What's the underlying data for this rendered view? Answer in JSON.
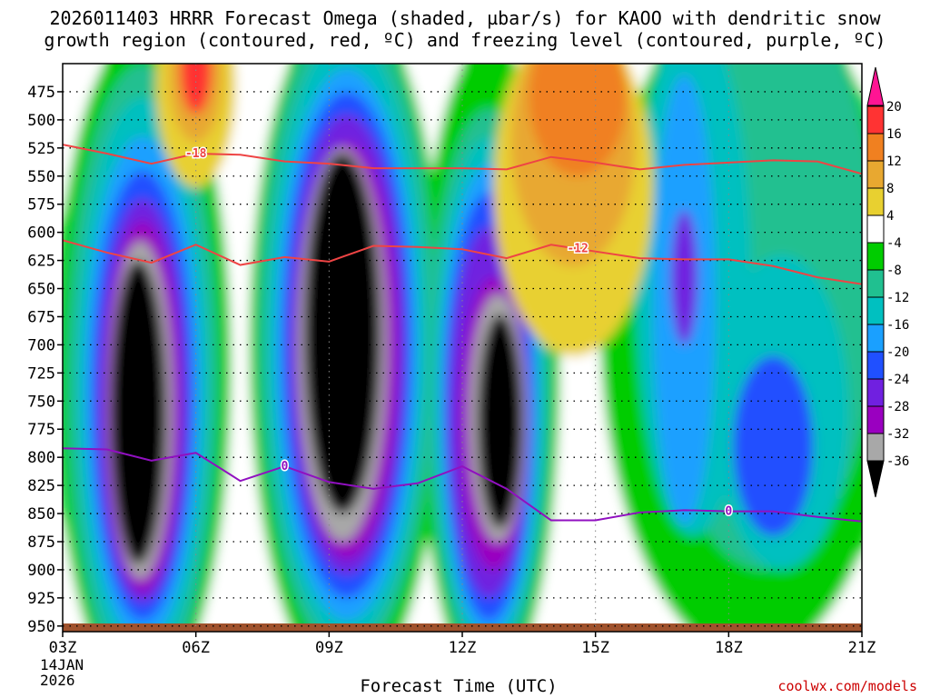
{
  "title": {
    "line1": "2026011403 HRRR Forecast Omega (shaded, µbar/s) for KAOO with dendritic snow",
    "line2": "growth region (contoured, red, ºC) and freezing level (contoured, purple, ºC)"
  },
  "credit": "coolwx.com/models",
  "chart_data": {
    "type": "heatmap",
    "xlabel": "Forecast Time (UTC)",
    "x_ticks": [
      "03Z",
      "06Z",
      "09Z",
      "12Z",
      "15Z",
      "18Z",
      "21Z"
    ],
    "x_tick_hours": [
      3,
      6,
      9,
      12,
      15,
      18,
      21
    ],
    "x_date_label": [
      "14JAN",
      "2026"
    ],
    "xlim": [
      3,
      21
    ],
    "ylabel": "",
    "y_ticks": [
      475,
      500,
      525,
      550,
      575,
      600,
      625,
      650,
      675,
      700,
      725,
      750,
      775,
      800,
      825,
      850,
      875,
      900,
      925,
      950
    ],
    "ylim": [
      450,
      955
    ],
    "y_inverted": true,
    "grid": true,
    "colorbar": {
      "labels": [
        "20",
        "16",
        "12",
        "8",
        "4",
        "-4",
        "-8",
        "-12",
        "-16",
        "-20",
        "-24",
        "-28",
        "-32",
        "-36"
      ],
      "colors": [
        "#ff1493",
        "#ff3333",
        "#f08020",
        "#e8a830",
        "#e8d030",
        "#ffffff",
        "#00cc00",
        "#20c090",
        "#00c0c0",
        "#1aa0ff",
        "#2050ff",
        "#7020e0",
        "#9a00c0",
        "#a8a8a8",
        "#000000"
      ]
    },
    "omega_field": {
      "units": "µbar/s",
      "cores": [
        {
          "name": "core-03z-06z",
          "hour": 4.8,
          "pressure": 740,
          "min": -40
        },
        {
          "name": "core-08z-10z",
          "hour": 9.4,
          "pressure": 700,
          "min": -40
        },
        {
          "name": "core-12z-13z",
          "hour": 12.8,
          "pressure": 760,
          "min": -38
        },
        {
          "name": "rise-13z-15z",
          "hour": 14.4,
          "pressure": 560,
          "max": 14
        },
        {
          "name": "rise-05z-06z",
          "hour": 6.0,
          "pressure": 470,
          "max": 18
        },
        {
          "name": "core-17z",
          "hour": 17.0,
          "pressure": 650,
          "min": -24
        },
        {
          "name": "core-19z",
          "hour": 19.0,
          "pressure": 800,
          "min": -20
        }
      ]
    },
    "contours": [
      {
        "label": "-18",
        "color": "#ee4444",
        "label_hour": 6.0,
        "points": [
          [
            3,
            522
          ],
          [
            4,
            530
          ],
          [
            5,
            539
          ],
          [
            6,
            530
          ],
          [
            7,
            531
          ],
          [
            8,
            537
          ],
          [
            9,
            539
          ],
          [
            10,
            543
          ],
          [
            11,
            543
          ],
          [
            12,
            543
          ],
          [
            13,
            544
          ],
          [
            14,
            533
          ],
          [
            15,
            538
          ],
          [
            16,
            544
          ],
          [
            17,
            540
          ],
          [
            18,
            538
          ],
          [
            19,
            536
          ],
          [
            20,
            537
          ],
          [
            21,
            548
          ]
        ]
      },
      {
        "label": "-12",
        "color": "#ee4444",
        "label_hour": 14.6,
        "points": [
          [
            3,
            607
          ],
          [
            4,
            618
          ],
          [
            5,
            627
          ],
          [
            6,
            611
          ],
          [
            7,
            629
          ],
          [
            8,
            622
          ],
          [
            9,
            626
          ],
          [
            10,
            612
          ],
          [
            11,
            613
          ],
          [
            12,
            615
          ],
          [
            13,
            623
          ],
          [
            14,
            611
          ],
          [
            15,
            617
          ],
          [
            16,
            623
          ],
          [
            17,
            624
          ],
          [
            18,
            624
          ],
          [
            19,
            630
          ],
          [
            20,
            640
          ],
          [
            21,
            646
          ]
        ]
      },
      {
        "label": "0",
        "color": "#9010c0",
        "label_hour": 18.0,
        "points": [
          [
            3,
            792
          ],
          [
            4,
            793
          ],
          [
            5,
            803
          ],
          [
            6,
            796
          ],
          [
            7,
            821
          ],
          [
            8,
            808
          ],
          [
            9,
            822
          ],
          [
            10,
            828
          ],
          [
            11,
            823
          ],
          [
            12,
            808
          ],
          [
            13,
            828
          ],
          [
            14,
            856
          ],
          [
            15,
            856
          ],
          [
            16,
            849
          ],
          [
            17,
            847
          ],
          [
            18,
            848
          ],
          [
            19,
            848
          ],
          [
            20,
            853
          ],
          [
            21,
            857
          ]
        ]
      }
    ],
    "extra_contour_labels": [
      {
        "label": "0",
        "hour": 8.0,
        "color": "#9010c0"
      }
    ]
  }
}
